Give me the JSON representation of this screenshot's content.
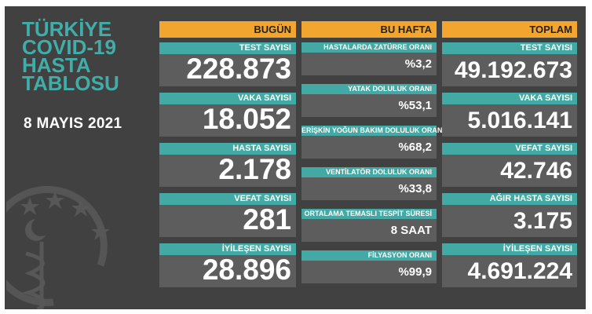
{
  "title_lines": [
    "TÜRKİYE",
    "COVID-19",
    "HASTA",
    "TABLOSU"
  ],
  "date": "8 MAYIS 2021",
  "colors": {
    "teal": "#43a9a4",
    "orange": "#f3a62f",
    "panel": "#414141",
    "value_bg": "#5d5d5d"
  },
  "columns": {
    "today": {
      "header": "BUGÜN",
      "items": [
        {
          "label": "TEST SAYISI",
          "value": "228.873"
        },
        {
          "label": "VAKA SAYISI",
          "value": "18.052"
        },
        {
          "label": "HASTA SAYISI",
          "value": "2.178"
        },
        {
          "label": "VEFAT SAYISI",
          "value": "281"
        },
        {
          "label": "İYİLEŞEN SAYISI",
          "value": "28.896"
        }
      ]
    },
    "week": {
      "header": "BU HAFTA",
      "items": [
        {
          "label": "HASTALARDA ZATÜRRE ORANI",
          "value": "%3,2"
        },
        {
          "label": "YATAK DOLULUK ORANI",
          "value": "%53,1"
        },
        {
          "label": "ERİŞKİN YOĞUN BAKIM DOLULUK ORANI",
          "value": "%68,2"
        },
        {
          "label": "VENTİLATÖR DOLULUK ORANI",
          "value": "%33,8"
        },
        {
          "label": "ORTALAMA TEMASLI TESPİT SÜRESİ",
          "value": "8 SAAT"
        },
        {
          "label": "FİLYASYON ORANI",
          "value": "%99,9"
        }
      ]
    },
    "total": {
      "header": "TOPLAM",
      "items": [
        {
          "label": "TEST SAYISI",
          "value": "49.192.673"
        },
        {
          "label": "VAKA SAYISI",
          "value": "5.016.141"
        },
        {
          "label": "VEFAT SAYISI",
          "value": "42.746"
        },
        {
          "label": "AĞIR HASTA SAYISI",
          "value": "3.175"
        },
        {
          "label": "İYİLEŞEN SAYISI",
          "value": "4.691.224"
        }
      ]
    }
  }
}
